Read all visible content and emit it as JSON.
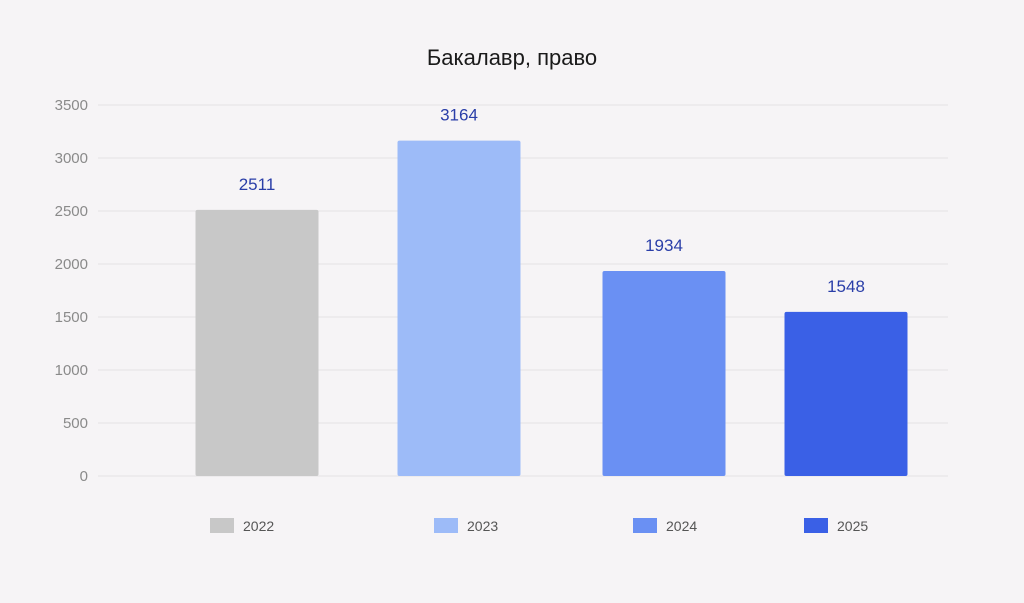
{
  "chart_data": {
    "type": "bar",
    "title": "Бакалавр, право",
    "xlabel": "",
    "ylabel": "",
    "categories": [
      "2022",
      "2023",
      "2024",
      "2025"
    ],
    "values": [
      2511,
      3164,
      1934,
      1548
    ],
    "colors": [
      "#c8c8c8",
      "#9dbbf8",
      "#6a90f3",
      "#3a60e6"
    ],
    "ylim": [
      0,
      3500
    ],
    "yticks": [
      0,
      500,
      1000,
      1500,
      2000,
      2500,
      3000,
      3500
    ],
    "grid": true,
    "legend": "bottom",
    "label_color": "#2a3ea8"
  }
}
